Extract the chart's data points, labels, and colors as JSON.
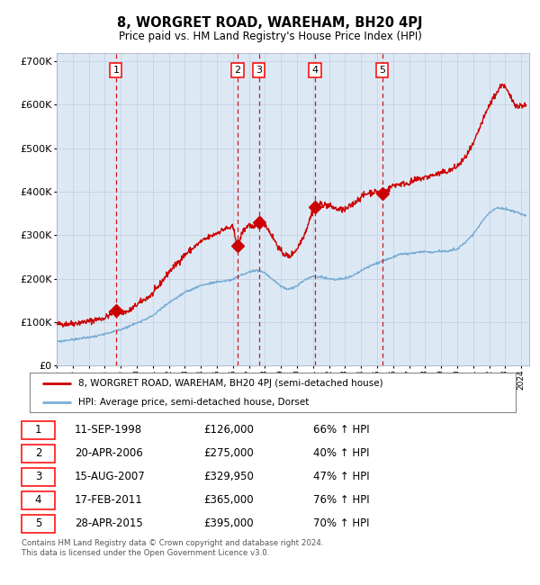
{
  "title": "8, WORGRET ROAD, WAREHAM, BH20 4PJ",
  "subtitle": "Price paid vs. HM Land Registry's House Price Index (HPI)",
  "xlim": [
    1995.0,
    2024.5
  ],
  "ylim": [
    0,
    720000
  ],
  "yticks": [
    0,
    100000,
    200000,
    300000,
    400000,
    500000,
    600000,
    700000
  ],
  "ytick_labels": [
    "£0",
    "£100K",
    "£200K",
    "£300K",
    "£400K",
    "£500K",
    "£600K",
    "£700K"
  ],
  "plot_bg": "#dce9f5",
  "red_line_color": "#cc0000",
  "blue_line_color": "#7aadd4",
  "dashed_line_color": "#cc0000",
  "grid_color": "#b0b8cc",
  "sale_points": [
    {
      "label": "1",
      "year": 1998.7,
      "price": 126000
    },
    {
      "label": "2",
      "year": 2006.3,
      "price": 275000
    },
    {
      "label": "3",
      "year": 2007.62,
      "price": 329950
    },
    {
      "label": "4",
      "year": 2011.12,
      "price": 365000
    },
    {
      "label": "5",
      "year": 2015.32,
      "price": 395000
    }
  ],
  "legend_entries": [
    "8, WORGRET ROAD, WAREHAM, BH20 4PJ (semi-detached house)",
    "HPI: Average price, semi-detached house, Dorset"
  ],
  "table_rows": [
    [
      "1",
      "11-SEP-1998",
      "£126,000",
      "66% ↑ HPI"
    ],
    [
      "2",
      "20-APR-2006",
      "£275,000",
      "40% ↑ HPI"
    ],
    [
      "3",
      "15-AUG-2007",
      "£329,950",
      "47% ↑ HPI"
    ],
    [
      "4",
      "17-FEB-2011",
      "£365,000",
      "76% ↑ HPI"
    ],
    [
      "5",
      "28-APR-2015",
      "£395,000",
      "70% ↑ HPI"
    ]
  ],
  "footer": "Contains HM Land Registry data © Crown copyright and database right 2024.\nThis data is licensed under the Open Government Licence v3.0.",
  "red_anchors": [
    [
      1995.0,
      95000
    ],
    [
      1996.0,
      97000
    ],
    [
      1997.0,
      102000
    ],
    [
      1998.0,
      110000
    ],
    [
      1998.7,
      126000
    ],
    [
      1999.0,
      122000
    ],
    [
      1999.5,
      125000
    ],
    [
      2000.0,
      140000
    ],
    [
      2001.0,
      165000
    ],
    [
      2002.0,
      215000
    ],
    [
      2003.0,
      255000
    ],
    [
      2004.0,
      285000
    ],
    [
      2005.0,
      305000
    ],
    [
      2005.5,
      315000
    ],
    [
      2006.0,
      318000
    ],
    [
      2006.3,
      275000
    ],
    [
      2006.6,
      308000
    ],
    [
      2007.0,
      325000
    ],
    [
      2007.3,
      315000
    ],
    [
      2007.62,
      329950
    ],
    [
      2007.8,
      335000
    ],
    [
      2008.1,
      320000
    ],
    [
      2008.5,
      295000
    ],
    [
      2009.0,
      262000
    ],
    [
      2009.5,
      250000
    ],
    [
      2010.0,
      268000
    ],
    [
      2010.5,
      305000
    ],
    [
      2011.0,
      358000
    ],
    [
      2011.12,
      365000
    ],
    [
      2011.5,
      372000
    ],
    [
      2012.0,
      368000
    ],
    [
      2012.5,
      360000
    ],
    [
      2013.0,
      358000
    ],
    [
      2013.5,
      372000
    ],
    [
      2014.0,
      388000
    ],
    [
      2014.5,
      398000
    ],
    [
      2015.0,
      400000
    ],
    [
      2015.32,
      395000
    ],
    [
      2015.8,
      408000
    ],
    [
      2016.0,
      415000
    ],
    [
      2016.5,
      418000
    ],
    [
      2017.0,
      420000
    ],
    [
      2017.5,
      428000
    ],
    [
      2018.0,
      433000
    ],
    [
      2018.5,
      438000
    ],
    [
      2019.0,
      443000
    ],
    [
      2019.5,
      448000
    ],
    [
      2020.0,
      458000
    ],
    [
      2020.5,
      478000
    ],
    [
      2021.0,
      508000
    ],
    [
      2021.5,
      555000
    ],
    [
      2022.0,
      598000
    ],
    [
      2022.3,
      618000
    ],
    [
      2022.6,
      635000
    ],
    [
      2022.8,
      648000
    ],
    [
      2023.0,
      640000
    ],
    [
      2023.3,
      620000
    ],
    [
      2023.5,
      608000
    ],
    [
      2023.8,
      595000
    ],
    [
      2024.0,
      600000
    ],
    [
      2024.3,
      598000
    ]
  ],
  "blue_anchors": [
    [
      1995.0,
      55000
    ],
    [
      1996.0,
      60000
    ],
    [
      1997.0,
      65000
    ],
    [
      1998.0,
      72000
    ],
    [
      1999.0,
      83000
    ],
    [
      2000.0,
      98000
    ],
    [
      2001.0,
      115000
    ],
    [
      2002.0,
      145000
    ],
    [
      2003.0,
      168000
    ],
    [
      2004.0,
      185000
    ],
    [
      2005.0,
      192000
    ],
    [
      2006.0,
      198000
    ],
    [
      2006.5,
      208000
    ],
    [
      2007.0,
      215000
    ],
    [
      2007.5,
      220000
    ],
    [
      2008.0,
      213000
    ],
    [
      2008.5,
      198000
    ],
    [
      2009.0,
      182000
    ],
    [
      2009.5,
      175000
    ],
    [
      2010.0,
      183000
    ],
    [
      2010.5,
      198000
    ],
    [
      2011.0,
      205000
    ],
    [
      2011.5,
      204000
    ],
    [
      2012.0,
      200000
    ],
    [
      2012.5,
      198000
    ],
    [
      2013.0,
      200000
    ],
    [
      2013.5,
      207000
    ],
    [
      2014.0,
      218000
    ],
    [
      2014.5,
      228000
    ],
    [
      2015.0,
      236000
    ],
    [
      2015.5,
      243000
    ],
    [
      2016.0,
      250000
    ],
    [
      2016.5,
      256000
    ],
    [
      2017.0,
      258000
    ],
    [
      2017.5,
      260000
    ],
    [
      2018.0,
      262000
    ],
    [
      2018.5,
      261000
    ],
    [
      2019.0,
      263000
    ],
    [
      2019.5,
      264000
    ],
    [
      2020.0,
      268000
    ],
    [
      2020.5,
      283000
    ],
    [
      2021.0,
      303000
    ],
    [
      2021.5,
      328000
    ],
    [
      2022.0,
      352000
    ],
    [
      2022.5,
      363000
    ],
    [
      2023.0,
      360000
    ],
    [
      2023.5,
      355000
    ],
    [
      2024.0,
      348000
    ],
    [
      2024.3,
      346000
    ]
  ]
}
